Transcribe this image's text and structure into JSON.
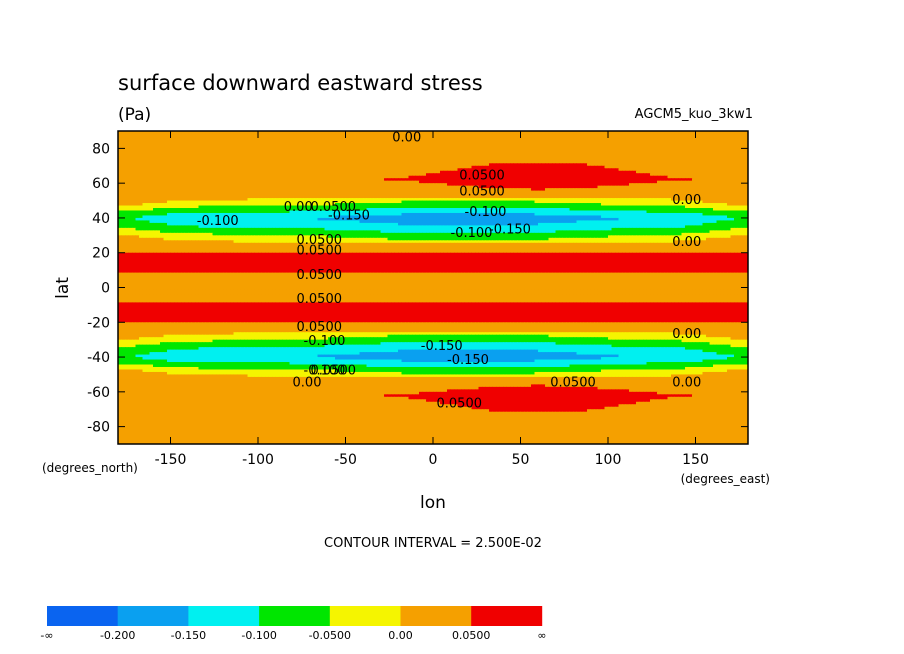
{
  "chart_data": {
    "type": "heatmap",
    "title": "surface downward eastward stress",
    "units": "(Pa)",
    "run_label": "AGCM5_kuo_3kw1",
    "xlabel": "lon",
    "ylabel": "lat",
    "x_units_label": "(degrees_east)",
    "y_units_label": "(degrees_north)",
    "xlim": [
      -180,
      180
    ],
    "ylim": [
      -90,
      90
    ],
    "xticks": [
      "-150",
      "-100",
      "-50",
      "0",
      "50",
      "100",
      "150"
    ],
    "xtick_values": [
      -150,
      -100,
      -50,
      0,
      50,
      100,
      150
    ],
    "yticks": [
      "80",
      "60",
      "40",
      "20",
      "0",
      "-20",
      "-40",
      "-60",
      "-80"
    ],
    "ytick_values": [
      80,
      60,
      40,
      20,
      0,
      -20,
      -40,
      -60,
      -80
    ],
    "contour_interval_text": "CONTOUR INTERVAL = 2.500E-02",
    "colorbar": {
      "colors": [
        "#0a64f0",
        "#0aa0f0",
        "#00f0f0",
        "#00e600",
        "#f5f500",
        "#f5a000",
        "#f00000"
      ],
      "labels": [
        "-∞",
        "-0.200",
        "-0.150",
        "-0.100",
        "-0.0500",
        "0.00",
        "0.0500",
        "∞"
      ]
    },
    "zonal_profile": {
      "lat": [
        -90,
        -80,
        -70,
        -62,
        -55,
        -50,
        -45,
        -40,
        -35,
        -30,
        -25,
        -18,
        -10,
        -4,
        0,
        4,
        10,
        18,
        25,
        30,
        35,
        40,
        45,
        50,
        55,
        62,
        70,
        80,
        90
      ],
      "value": [
        0.01,
        0.02,
        0.04,
        0.055,
        0.03,
        0.0,
        -0.07,
        -0.14,
        -0.1,
        -0.04,
        0.02,
        0.06,
        0.055,
        0.03,
        0.035,
        0.03,
        0.055,
        0.06,
        0.02,
        -0.04,
        -0.1,
        -0.14,
        -0.07,
        0.0,
        0.03,
        0.055,
        0.04,
        0.02,
        0.005
      ]
    },
    "contour_labels": [
      {
        "text": "0.00",
        "lon": -15,
        "lat": 86
      },
      {
        "text": "0.0500",
        "lon": 28,
        "lat": 64
      },
      {
        "text": "0.0500",
        "lon": 28,
        "lat": 55
      },
      {
        "text": "0.00",
        "lon": -77,
        "lat": 46
      },
      {
        "text": "0.0500",
        "lon": -57,
        "lat": 46
      },
      {
        "text": "-0.150",
        "lon": -48,
        "lat": 41
      },
      {
        "text": "-0.100",
        "lon": 30,
        "lat": 43
      },
      {
        "text": "-0.100",
        "lon": -123,
        "lat": 38
      },
      {
        "text": "-0.100",
        "lon": 22,
        "lat": 31
      },
      {
        "text": "-0.150",
        "lon": 44,
        "lat": 33
      },
      {
        "text": "0.00",
        "lon": 145,
        "lat": 50
      },
      {
        "text": "0.00",
        "lon": 145,
        "lat": 26
      },
      {
        "text": "0.0500",
        "lon": -65,
        "lat": 27
      },
      {
        "text": "0.0500",
        "lon": -65,
        "lat": 21
      },
      {
        "text": "0.0500",
        "lon": -65,
        "lat": 7
      },
      {
        "text": "0.0500",
        "lon": -65,
        "lat": -7
      },
      {
        "text": "0.0500",
        "lon": -65,
        "lat": -23
      },
      {
        "text": "-0.100",
        "lon": -62,
        "lat": -31
      },
      {
        "text": "0.00",
        "lon": 145,
        "lat": -27
      },
      {
        "text": "0.00",
        "lon": 145,
        "lat": -55
      },
      {
        "text": "-0.150",
        "lon": 5,
        "lat": -34
      },
      {
        "text": "-0.150",
        "lon": 20,
        "lat": -42
      },
      {
        "text": "-0.100",
        "lon": -62,
        "lat": -48
      },
      {
        "text": "0.0500",
        "lon": -57,
        "lat": -48
      },
      {
        "text": "0.00",
        "lon": -72,
        "lat": -55
      },
      {
        "text": "0.0500",
        "lon": 80,
        "lat": -55
      },
      {
        "text": "0.0500",
        "lon": 15,
        "lat": -67
      }
    ]
  }
}
